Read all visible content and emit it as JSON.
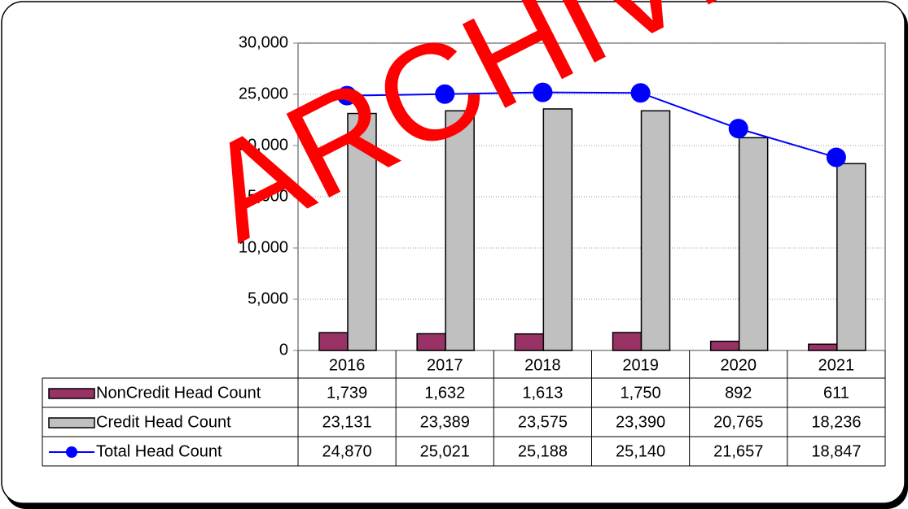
{
  "chart_data": {
    "type": "bar",
    "watermark": "ARCHIVE",
    "categories": [
      "2016",
      "2017",
      "2018",
      "2019",
      "2020",
      "2021"
    ],
    "series": [
      {
        "name": "NonCredit Head Count",
        "type": "bar",
        "color": "#993366",
        "values": [
          1739,
          1632,
          1613,
          1750,
          892,
          611
        ],
        "value_labels": [
          "1,739",
          "1,632",
          "1,613",
          "1,750",
          "892",
          "611"
        ]
      },
      {
        "name": "Credit Head Count",
        "type": "bar",
        "color": "#c0c0c0",
        "values": [
          23131,
          23389,
          23575,
          23390,
          20765,
          18236
        ],
        "value_labels": [
          "23,131",
          "23,389",
          "23,575",
          "23,390",
          "20,765",
          "18,236"
        ]
      },
      {
        "name": "Total Head Count",
        "type": "line",
        "color": "#0000ff",
        "values": [
          24870,
          25021,
          25188,
          25140,
          21657,
          18847
        ],
        "value_labels": [
          "24,870",
          "25,021",
          "25,188",
          "25,140",
          "21,657",
          "18,847"
        ]
      }
    ],
    "ylim": [
      0,
      30000
    ],
    "yticks": [
      0,
      {
        "value": 5000,
        "label": "5,000"
      },
      {
        "value": 10000,
        "label": "10,000"
      },
      {
        "value": 15000,
        "label": "15,000"
      },
      {
        "value": 20000,
        "label": "20,000"
      },
      {
        "value": 25000,
        "label": "25,000"
      },
      {
        "value": 30000,
        "label": "30,000"
      }
    ],
    "grid": true
  }
}
